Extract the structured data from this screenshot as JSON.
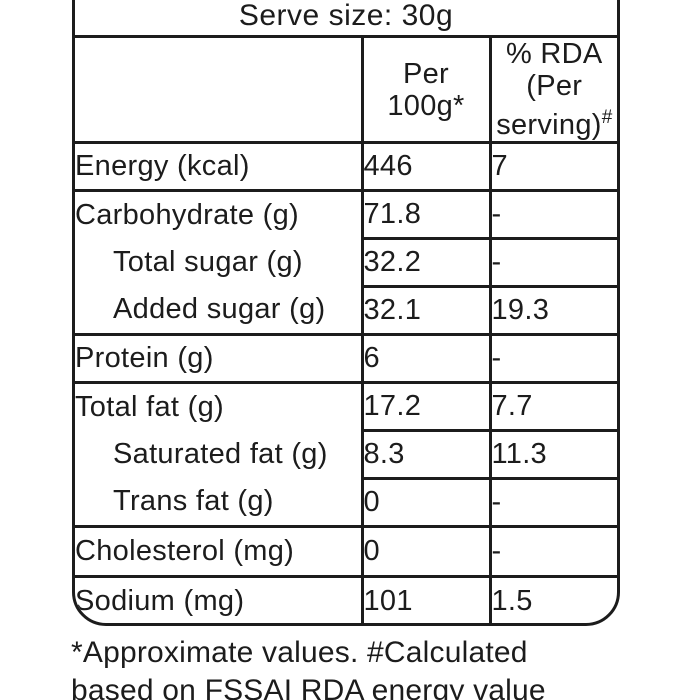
{
  "colors": {
    "ink": "#1c1c1c",
    "background": "#ffffff"
  },
  "serve_size_label": "Serve size: 30g",
  "table": {
    "header": {
      "per100_line1": "Per",
      "per100_line2": "100g*",
      "rda_line1": "% RDA",
      "rda_line2": "(Per",
      "rda_line3": "serving)",
      "rda_sup": "#"
    },
    "rows": [
      {
        "label": "Energy (kcal)",
        "per_100g": "446",
        "rda_per_serving": "7"
      },
      {
        "label": "Carbohydrate (g)",
        "per_100g": "71.8",
        "rda_per_serving": "-"
      },
      {
        "label": "Total sugar (g)",
        "per_100g": "32.2",
        "rda_per_serving": "-"
      },
      {
        "label": "Added sugar (g)",
        "per_100g": "32.1",
        "rda_per_serving": "19.3"
      },
      {
        "label": "Protein (g)",
        "per_100g": "6",
        "rda_per_serving": "-"
      },
      {
        "label": "Total fat (g)",
        "per_100g": "17.2",
        "rda_per_serving": "7.7"
      },
      {
        "label": "Saturated fat (g)",
        "per_100g": "8.3",
        "rda_per_serving": "11.3"
      },
      {
        "label": "Trans fat (g)",
        "per_100g": "0",
        "rda_per_serving": "-"
      },
      {
        "label": "Cholesterol (mg)",
        "per_100g": "0",
        "rda_per_serving": "-"
      },
      {
        "label": "Sodium (mg)",
        "per_100g": "101",
        "rda_per_serving": "1.5"
      }
    ]
  },
  "footnote": {
    "line1": "*Approximate values. #Calculated",
    "line2": "based on FSSAI RDA energy value"
  }
}
